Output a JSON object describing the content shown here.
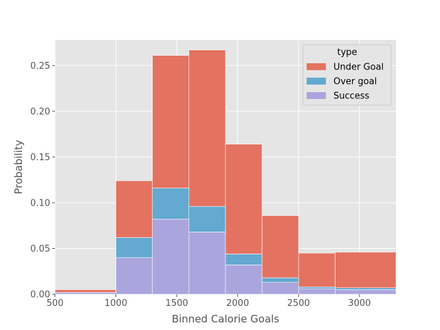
{
  "chart_data": {
    "type": "bar",
    "subtype": "stacked-histogram",
    "title": "",
    "xlabel": "Binned Calorie Goals",
    "ylabel": "Probability",
    "xlim": [
      500,
      3300
    ],
    "ylim": [
      0,
      0.278
    ],
    "x_ticks": [
      500,
      1000,
      1500,
      2000,
      2500,
      3000
    ],
    "x_tick_labels": [
      "500",
      "1000",
      "1500",
      "2000",
      "2500",
      "3000"
    ],
    "y_ticks": [
      0.0,
      0.05,
      0.1,
      0.15,
      0.2,
      0.25
    ],
    "y_tick_labels": [
      "0.00",
      "0.05",
      "0.10",
      "0.15",
      "0.20",
      "0.25"
    ],
    "grid": true,
    "legend_placement": "top-right",
    "legend_title": "type",
    "bins": [
      [
        500,
        1000
      ],
      [
        1000,
        1300
      ],
      [
        1300,
        1600
      ],
      [
        1600,
        1900
      ],
      [
        1900,
        2200
      ],
      [
        2200,
        2500
      ],
      [
        2500,
        2800
      ],
      [
        2800,
        3300
      ]
    ],
    "series": [
      {
        "name": "Success",
        "color": "#a8a1dc",
        "values": [
          0.002,
          0.04,
          0.082,
          0.068,
          0.032,
          0.013,
          0.006,
          0.005
        ]
      },
      {
        "name": "Over goal",
        "color": "#5da5cf",
        "values": [
          0.0,
          0.022,
          0.034,
          0.028,
          0.012,
          0.005,
          0.002,
          0.002
        ]
      },
      {
        "name": "Under Goal",
        "color": "#e46b5a",
        "values": [
          0.003,
          0.062,
          0.145,
          0.171,
          0.12,
          0.068,
          0.037,
          0.039
        ]
      }
    ],
    "legend_order": [
      "Under Goal",
      "Over goal",
      "Success"
    ]
  }
}
